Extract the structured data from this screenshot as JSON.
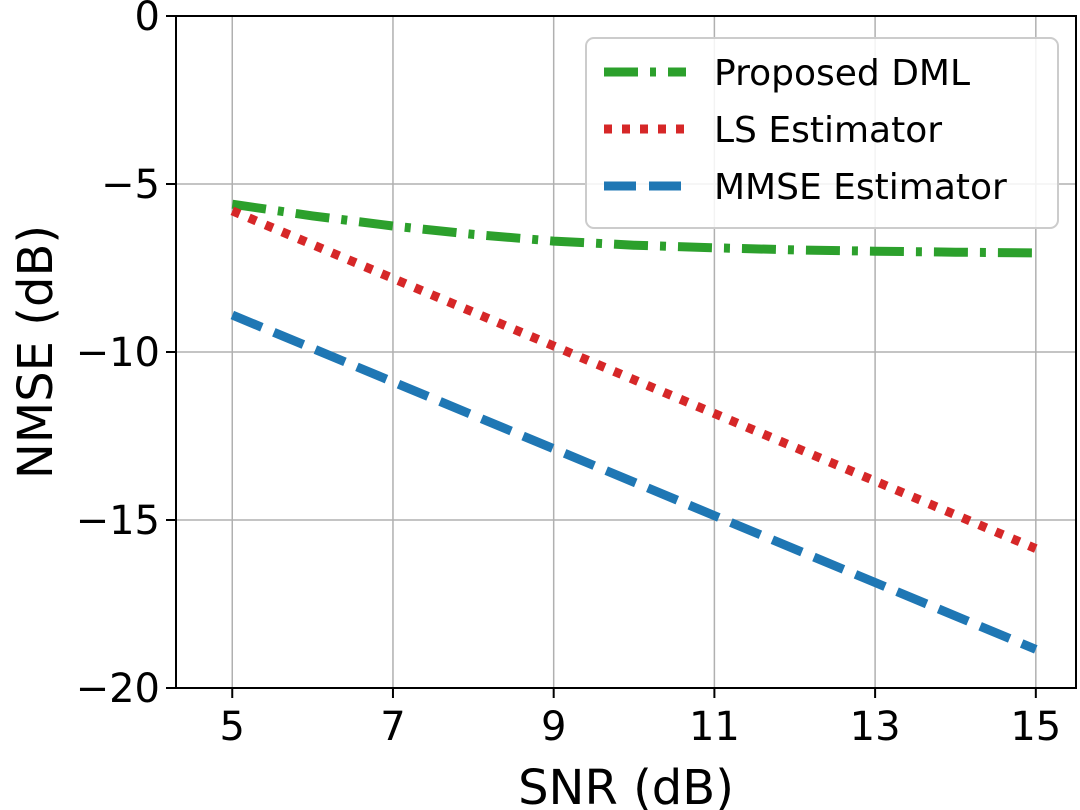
{
  "chart_data": {
    "type": "line",
    "title": "",
    "xlabel": "SNR (dB)",
    "ylabel": "NMSE (dB)",
    "xlim": [
      4.3,
      15.5
    ],
    "ylim": [
      -20,
      0
    ],
    "xticks": [
      5,
      7,
      9,
      11,
      13,
      15
    ],
    "yticks": [
      0,
      -5,
      -10,
      -15,
      -20
    ],
    "xtick_labels": [
      "5",
      "7",
      "9",
      "11",
      "13",
      "15"
    ],
    "ytick_labels": [
      "0",
      "−5",
      "−10",
      "−15",
      "−20"
    ],
    "grid": true,
    "legend_position": "top-right",
    "series": [
      {
        "name": "Proposed DML",
        "color": "#2ca02c",
        "style": "dashdot",
        "x": [
          5,
          6,
          7,
          8,
          9,
          10,
          11,
          12,
          13,
          14,
          15
        ],
        "values": [
          -5.6,
          -5.95,
          -6.25,
          -6.5,
          -6.7,
          -6.82,
          -6.9,
          -6.96,
          -7.0,
          -7.03,
          -7.05
        ]
      },
      {
        "name": "LS Estimator",
        "color": "#d62728",
        "style": "dotted",
        "x": [
          5,
          15
        ],
        "values": [
          -5.8,
          -15.85
        ]
      },
      {
        "name": "MMSE Estimator",
        "color": "#1f77b4",
        "style": "dashed",
        "x": [
          5,
          15
        ],
        "values": [
          -8.9,
          -18.85
        ]
      }
    ]
  }
}
